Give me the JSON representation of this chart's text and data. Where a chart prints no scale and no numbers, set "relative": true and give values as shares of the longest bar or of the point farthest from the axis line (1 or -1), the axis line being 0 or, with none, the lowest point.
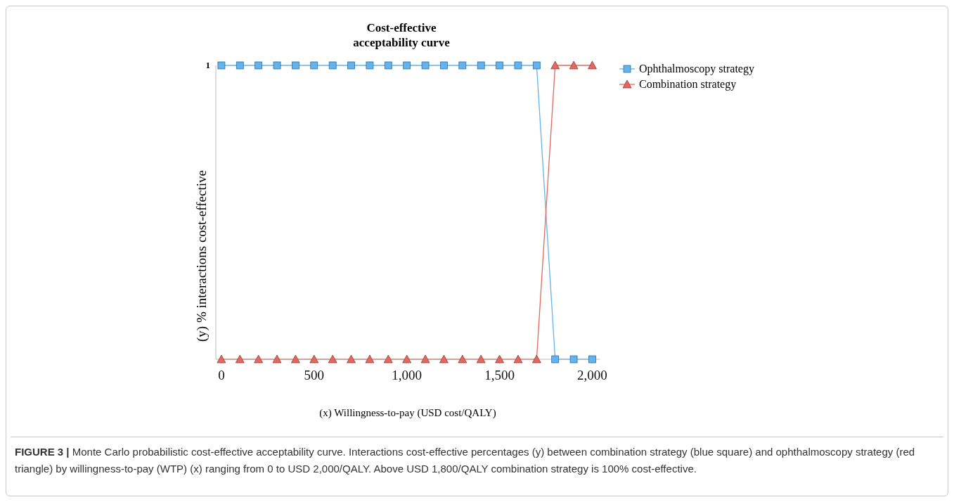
{
  "chart_data": {
    "type": "line",
    "title": "Cost-effective\nacceptability curve",
    "xlabel": "(x) Willingness-to-pay (USD cost/QALY)",
    "ylabel": "(y) % interactions cost-effective",
    "x": [
      0,
      100,
      200,
      300,
      400,
      500,
      600,
      700,
      800,
      900,
      1000,
      1100,
      1200,
      1300,
      1400,
      1500,
      1600,
      1700,
      1800,
      1900,
      2000
    ],
    "series": [
      {
        "name": "Ophthalmoscopy strategy",
        "color": "#63b3ef",
        "marker": "square",
        "values": [
          1,
          1,
          1,
          1,
          1,
          1,
          1,
          1,
          1,
          1,
          1,
          1,
          1,
          1,
          1,
          1,
          1,
          1,
          0,
          0,
          0
        ]
      },
      {
        "name": "Combination strategy",
        "color": "#e0685e",
        "marker": "triangle",
        "values": [
          0,
          0,
          0,
          0,
          0,
          0,
          0,
          0,
          0,
          0,
          0,
          0,
          0,
          0,
          0,
          0,
          0,
          0,
          1,
          1,
          1
        ]
      }
    ],
    "xlim": [
      -30,
      2040
    ],
    "xticks": [
      0,
      {
        "value": 500,
        "label": "500"
      },
      {
        "value": 1000,
        "label": "1,000"
      },
      {
        "value": 1500,
        "label": "1,500"
      },
      {
        "value": 2000,
        "label": "2,000"
      }
    ],
    "relative": true,
    "grid": false,
    "legend": "top right",
    "annotations": [
      "1",
      "FIGURE 3 |",
      "Monte Carlo probabilistic cost-effective acceptability curve. Interactions cost-effective percentages (y) between combination strategy (blue square) and ophthalmoscopy strategy (red triangle) by willingness-to-pay (WTP) (x) ranging from 0 to USD 2,000/QALY. Above USD 1,800/QALY combination strategy is 100% cost-effective."
    ]
  }
}
